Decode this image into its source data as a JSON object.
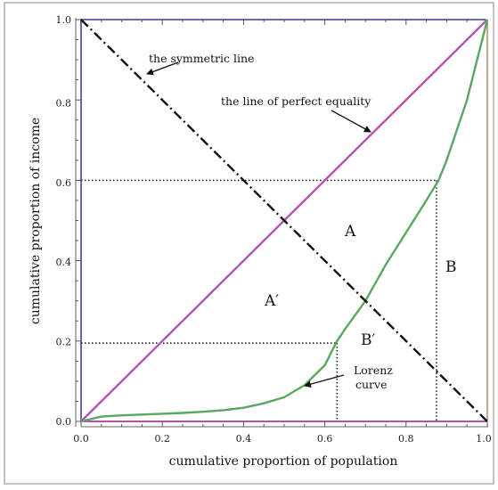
{
  "chart_data": {
    "type": "line",
    "xlabel": "cumulative proportion of population",
    "ylabel": "cumulative proportion of income",
    "xlim": [
      0,
      1
    ],
    "ylim": [
      0,
      1
    ],
    "x_ticks": [
      "0.0",
      "0.2",
      "0.4",
      "0.6",
      "0.8",
      "1.0"
    ],
    "y_ticks": [
      "0.0",
      "0.2",
      "0.4",
      "0.6",
      "0.8",
      "1.0"
    ],
    "grid": false,
    "series": [
      {
        "key": "equality",
        "style": "solid",
        "color": "#b452b4",
        "x": [
          0,
          1
        ],
        "y": [
          0,
          1
        ]
      },
      {
        "key": "symmetric",
        "style": "dash-dot",
        "color": "#111111",
        "x": [
          0,
          1
        ],
        "y": [
          1,
          0
        ]
      },
      {
        "key": "lorenz",
        "style": "solid",
        "color": "#58a863",
        "x": [
          0,
          0.05,
          0.1,
          0.15,
          0.2,
          0.25,
          0.3,
          0.35,
          0.4,
          0.45,
          0.5,
          0.55,
          0.6,
          0.63,
          0.65,
          0.7,
          0.75,
          0.8,
          0.85,
          0.88,
          0.9,
          0.95,
          1.0
        ],
        "y": [
          0,
          0.012,
          0.015,
          0.017,
          0.019,
          0.021,
          0.024,
          0.028,
          0.034,
          0.045,
          0.06,
          0.09,
          0.14,
          0.2,
          0.23,
          0.3,
          0.39,
          0.47,
          0.55,
          0.6,
          0.65,
          0.8,
          1.0
        ]
      }
    ],
    "reference_lines": [
      {
        "from": [
          0,
          0.6
        ],
        "to": [
          0.875,
          0.6
        ]
      },
      {
        "from": [
          0.875,
          0.6
        ],
        "to": [
          0.875,
          0
        ]
      },
      {
        "from": [
          0,
          0.195
        ],
        "to": [
          0.63,
          0.195
        ]
      },
      {
        "from": [
          0.63,
          0.195
        ],
        "to": [
          0.63,
          0
        ]
      }
    ],
    "annotations": {
      "symmetric_label": "the symmetric line",
      "equality_label": "the line of perfect equality",
      "lorenz_label_1": "Lorenz",
      "lorenz_label_2": "curve"
    },
    "regions": {
      "A": "A",
      "A_prime": "A′",
      "B": "B",
      "B_prime": "B′"
    },
    "colors": {
      "frame_left": "#6a6ab4",
      "frame_top": "#6a6ab4",
      "frame_right": "#b08a60",
      "frame_bottom": "#b452b4",
      "lorenz": "#58a863",
      "equality": "#b452b4"
    }
  }
}
